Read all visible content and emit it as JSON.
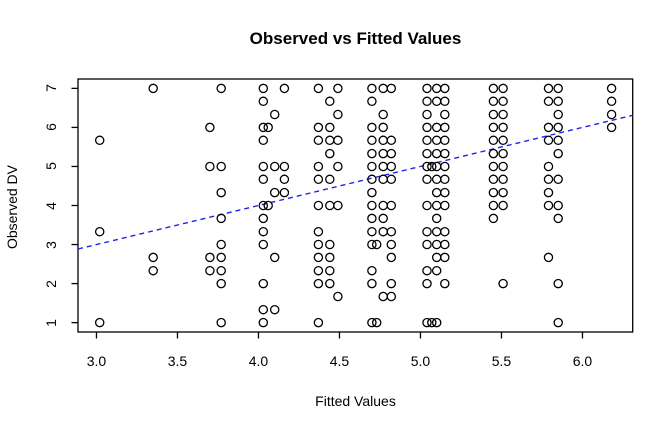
{
  "chart_data": {
    "type": "scatter",
    "title": "Observed vs Fitted Values",
    "xlabel": "Fitted Values",
    "ylabel": "Observed DV",
    "x_tick_labels": [
      "3.0",
      "3.5",
      "4.0",
      "4.5",
      "5.0",
      "5.5",
      "6.0"
    ],
    "x_tick_values": [
      3.0,
      3.5,
      4.0,
      4.5,
      5.0,
      5.5,
      6.0
    ],
    "y_tick_labels": [
      "1",
      "2",
      "3",
      "4",
      "5",
      "6",
      "7"
    ],
    "y_tick_values": [
      1,
      2,
      3,
      4,
      5,
      6,
      7
    ],
    "xlim": [
      2.886,
      6.31
    ],
    "ylim": [
      0.76,
      7.24
    ],
    "grid": false,
    "marker": "open-circle",
    "point_color": "#000000",
    "axis_color": "#000000",
    "background_color": "#ffffff",
    "reference_line": {
      "name": "identity-line",
      "slope": 1,
      "intercept": 0,
      "color": "#2323EC",
      "style": "dashed"
    },
    "points": [
      [
        3.02,
        5.67
      ],
      [
        3.02,
        3.33
      ],
      [
        3.02,
        1
      ],
      [
        3.35,
        7
      ],
      [
        3.35,
        2.67
      ],
      [
        3.35,
        2.33
      ],
      [
        3.7,
        6
      ],
      [
        3.7,
        5
      ],
      [
        3.7,
        2.67
      ],
      [
        3.7,
        2.33
      ],
      [
        3.77,
        7
      ],
      [
        3.77,
        5
      ],
      [
        3.77,
        4.33
      ],
      [
        3.77,
        3.67
      ],
      [
        3.77,
        3
      ],
      [
        3.77,
        2.67
      ],
      [
        3.77,
        2.33
      ],
      [
        3.77,
        2
      ],
      [
        3.77,
        1
      ],
      [
        4.03,
        7
      ],
      [
        4.03,
        6.67
      ],
      [
        4.03,
        6
      ],
      [
        4.03,
        5.67
      ],
      [
        4.03,
        5
      ],
      [
        4.03,
        4.67
      ],
      [
        4.03,
        4
      ],
      [
        4.03,
        3.67
      ],
      [
        4.03,
        3.33
      ],
      [
        4.03,
        3
      ],
      [
        4.03,
        2
      ],
      [
        4.03,
        1.33
      ],
      [
        4.03,
        1
      ],
      [
        4.06,
        6
      ],
      [
        4.06,
        4
      ],
      [
        4.1,
        6.33
      ],
      [
        4.1,
        5
      ],
      [
        4.1,
        4.33
      ],
      [
        4.1,
        2.67
      ],
      [
        4.1,
        1.33
      ],
      [
        4.16,
        7
      ],
      [
        4.16,
        5
      ],
      [
        4.16,
        4.67
      ],
      [
        4.16,
        4.33
      ],
      [
        4.37,
        7
      ],
      [
        4.37,
        6
      ],
      [
        4.37,
        5.67
      ],
      [
        4.37,
        5
      ],
      [
        4.37,
        4.67
      ],
      [
        4.37,
        4
      ],
      [
        4.37,
        3.33
      ],
      [
        4.37,
        3
      ],
      [
        4.37,
        2.67
      ],
      [
        4.37,
        2.33
      ],
      [
        4.37,
        2
      ],
      [
        4.37,
        1
      ],
      [
        4.44,
        6.67
      ],
      [
        4.44,
        6
      ],
      [
        4.44,
        5.67
      ],
      [
        4.44,
        5.33
      ],
      [
        4.44,
        4.67
      ],
      [
        4.44,
        4
      ],
      [
        4.44,
        3
      ],
      [
        4.44,
        2.67
      ],
      [
        4.44,
        2.33
      ],
      [
        4.44,
        2
      ],
      [
        4.49,
        7
      ],
      [
        4.49,
        6.33
      ],
      [
        4.49,
        5.67
      ],
      [
        4.49,
        5
      ],
      [
        4.49,
        4
      ],
      [
        4.49,
        1.67
      ],
      [
        4.7,
        7
      ],
      [
        4.7,
        6.67
      ],
      [
        4.7,
        6
      ],
      [
        4.7,
        5.67
      ],
      [
        4.7,
        5.33
      ],
      [
        4.7,
        5
      ],
      [
        4.7,
        4.67
      ],
      [
        4.7,
        4.33
      ],
      [
        4.7,
        4
      ],
      [
        4.7,
        3.67
      ],
      [
        4.7,
        3.33
      ],
      [
        4.7,
        3
      ],
      [
        4.7,
        2.33
      ],
      [
        4.7,
        2
      ],
      [
        4.7,
        1
      ],
      [
        4.73,
        3
      ],
      [
        4.73,
        1
      ],
      [
        4.77,
        7
      ],
      [
        4.77,
        6.33
      ],
      [
        4.77,
        6
      ],
      [
        4.77,
        5.67
      ],
      [
        4.77,
        5.33
      ],
      [
        4.77,
        5
      ],
      [
        4.77,
        4.67
      ],
      [
        4.77,
        4
      ],
      [
        4.77,
        3.67
      ],
      [
        4.77,
        3.33
      ],
      [
        4.77,
        1.67
      ],
      [
        4.82,
        7
      ],
      [
        4.82,
        5.67
      ],
      [
        4.82,
        5.33
      ],
      [
        4.82,
        5
      ],
      [
        4.82,
        4.67
      ],
      [
        4.82,
        4
      ],
      [
        4.82,
        3.33
      ],
      [
        4.82,
        3
      ],
      [
        4.82,
        2.67
      ],
      [
        4.82,
        2
      ],
      [
        4.82,
        1.67
      ],
      [
        5.04,
        7
      ],
      [
        5.04,
        6.67
      ],
      [
        5.04,
        6.33
      ],
      [
        5.04,
        6
      ],
      [
        5.04,
        5.67
      ],
      [
        5.04,
        5.33
      ],
      [
        5.04,
        5
      ],
      [
        5.04,
        4.67
      ],
      [
        5.04,
        4
      ],
      [
        5.04,
        3.33
      ],
      [
        5.04,
        3
      ],
      [
        5.04,
        2.33
      ],
      [
        5.04,
        2
      ],
      [
        5.04,
        1
      ],
      [
        5.07,
        5
      ],
      [
        5.07,
        1
      ],
      [
        5.1,
        7
      ],
      [
        5.1,
        6.67
      ],
      [
        5.1,
        6
      ],
      [
        5.1,
        5.67
      ],
      [
        5.1,
        5.33
      ],
      [
        5.1,
        5
      ],
      [
        5.1,
        4.67
      ],
      [
        5.1,
        4.33
      ],
      [
        5.1,
        4
      ],
      [
        5.1,
        3.67
      ],
      [
        5.1,
        3.33
      ],
      [
        5.1,
        3
      ],
      [
        5.1,
        2.67
      ],
      [
        5.1,
        2.33
      ],
      [
        5.1,
        1
      ],
      [
        5.15,
        7
      ],
      [
        5.15,
        6.67
      ],
      [
        5.15,
        6.33
      ],
      [
        5.15,
        6
      ],
      [
        5.15,
        5.67
      ],
      [
        5.15,
        5.33
      ],
      [
        5.15,
        5
      ],
      [
        5.15,
        4.67
      ],
      [
        5.15,
        4.33
      ],
      [
        5.15,
        4
      ],
      [
        5.15,
        3.33
      ],
      [
        5.15,
        3
      ],
      [
        5.15,
        2.67
      ],
      [
        5.15,
        2
      ],
      [
        5.45,
        7
      ],
      [
        5.45,
        6.67
      ],
      [
        5.45,
        6.33
      ],
      [
        5.45,
        6
      ],
      [
        5.45,
        5.67
      ],
      [
        5.45,
        5.33
      ],
      [
        5.45,
        5
      ],
      [
        5.45,
        4.67
      ],
      [
        5.45,
        4.33
      ],
      [
        5.45,
        4
      ],
      [
        5.45,
        3.67
      ],
      [
        5.51,
        7
      ],
      [
        5.51,
        6.67
      ],
      [
        5.51,
        6.33
      ],
      [
        5.51,
        6
      ],
      [
        5.51,
        5.67
      ],
      [
        5.51,
        5.33
      ],
      [
        5.51,
        5
      ],
      [
        5.51,
        4.67
      ],
      [
        5.51,
        4.33
      ],
      [
        5.51,
        4
      ],
      [
        5.51,
        2
      ],
      [
        5.79,
        7
      ],
      [
        5.79,
        6.67
      ],
      [
        5.79,
        6
      ],
      [
        5.79,
        5.67
      ],
      [
        5.79,
        5
      ],
      [
        5.79,
        4.67
      ],
      [
        5.79,
        4.33
      ],
      [
        5.79,
        4
      ],
      [
        5.79,
        2.67
      ],
      [
        5.85,
        7
      ],
      [
        5.85,
        6.67
      ],
      [
        5.85,
        6.33
      ],
      [
        5.85,
        6
      ],
      [
        5.85,
        5.67
      ],
      [
        5.85,
        5.33
      ],
      [
        5.85,
        4.67
      ],
      [
        5.85,
        4
      ],
      [
        5.85,
        3.67
      ],
      [
        5.85,
        2
      ],
      [
        5.85,
        1
      ],
      [
        6.18,
        7
      ],
      [
        6.18,
        6.67
      ],
      [
        6.18,
        6.33
      ],
      [
        6.18,
        6
      ]
    ]
  }
}
